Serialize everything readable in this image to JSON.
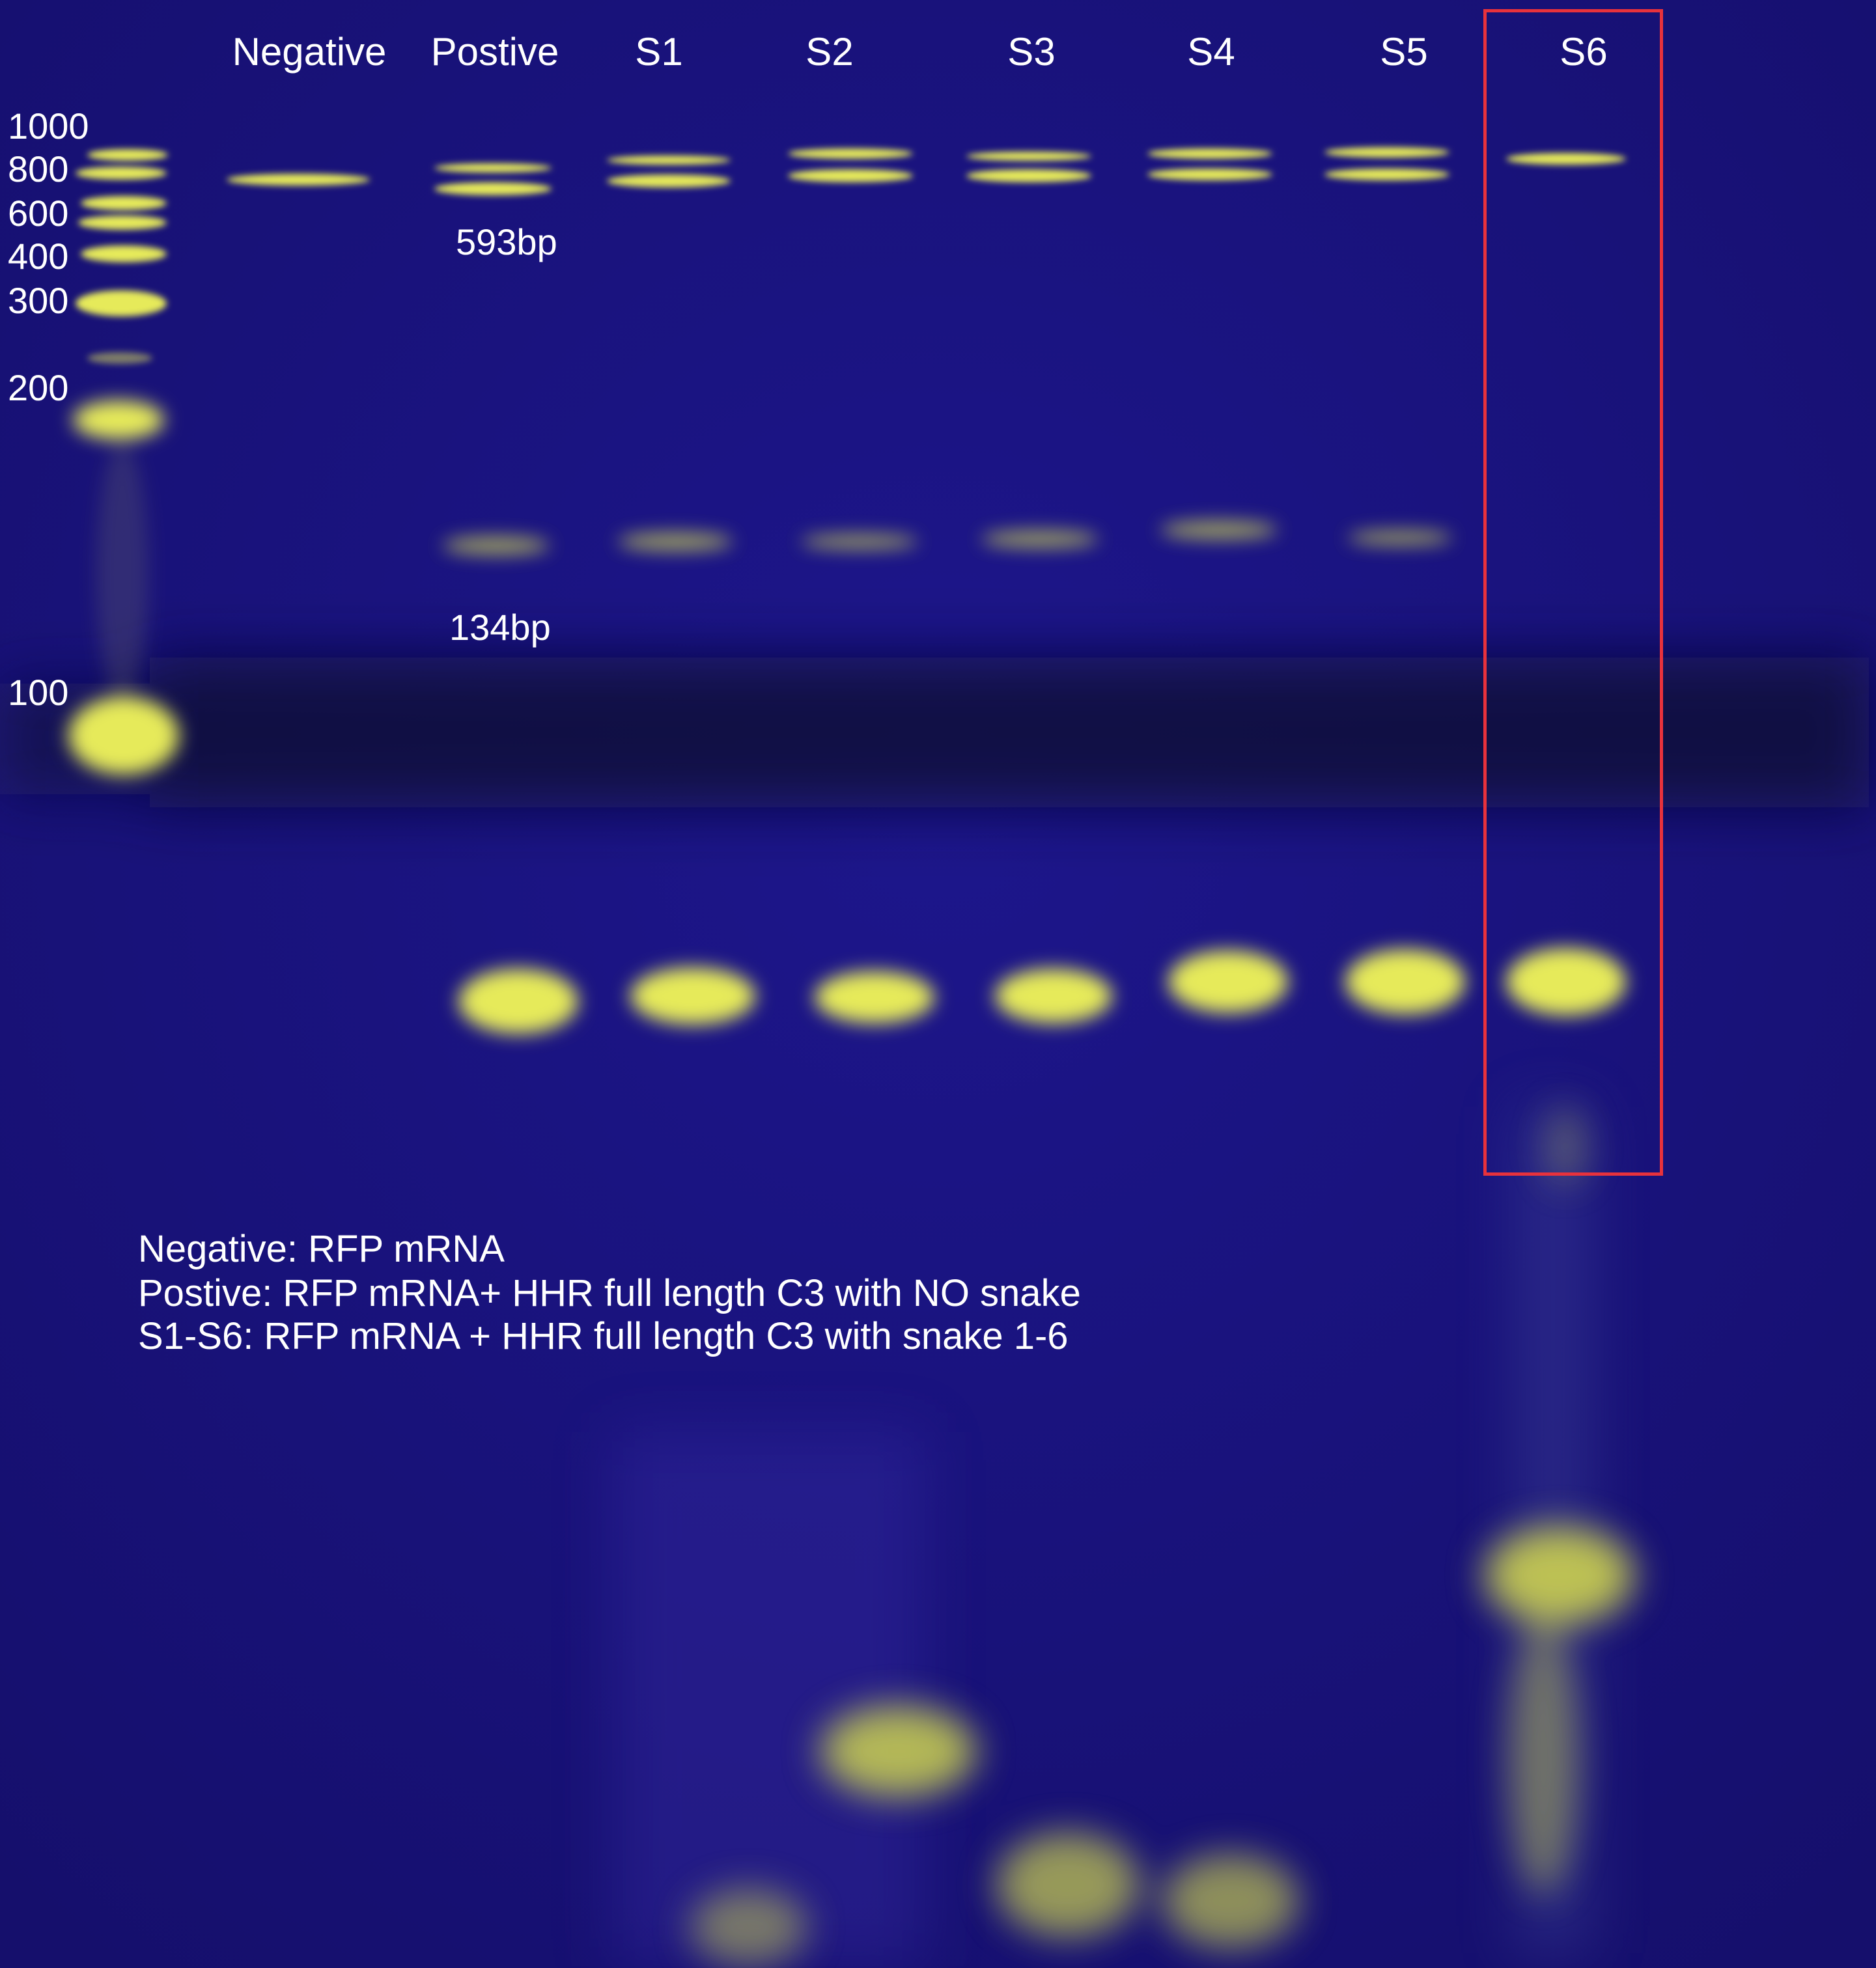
{
  "gel": {
    "lanes": [
      {
        "label": "Negative"
      },
      {
        "label": "Postive"
      },
      {
        "label": "S1"
      },
      {
        "label": "S2"
      },
      {
        "label": "S3"
      },
      {
        "label": "S4"
      },
      {
        "label": "S5"
      },
      {
        "label": "S6"
      }
    ],
    "ladder": [
      "1000",
      "800",
      "600",
      "400",
      "300",
      "200",
      "100"
    ],
    "band_annotations": [
      "593bp",
      "134bp"
    ],
    "legend": [
      "Negative: RFP mRNA",
      "Postive: RFP mRNA+ HHR full length C3 with NO snake",
      "S1-S6: RFP mRNA + HHR full length C3 with snake 1-6"
    ],
    "highlighted_lane": "S6",
    "colors": {
      "background": "#18127a",
      "band": "#e6ea5a",
      "highlight": "#e8323c",
      "text": "#ffffff"
    }
  }
}
